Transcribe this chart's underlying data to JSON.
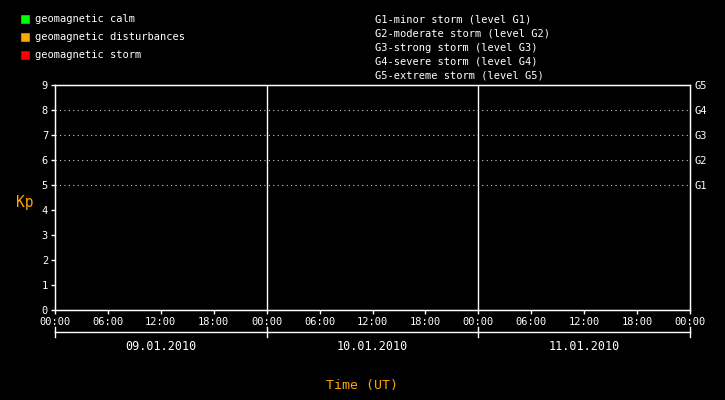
{
  "background_color": "#000000",
  "text_color": "#ffffff",
  "orange_color": "#ffa500",
  "ylabel": "Kp",
  "xlabel": "Time (UT)",
  "ylim": [
    0,
    9
  ],
  "yticks": [
    0,
    1,
    2,
    3,
    4,
    5,
    6,
    7,
    8,
    9
  ],
  "xtick_labels_per_day": [
    "00:00",
    "06:00",
    "12:00",
    "18:00"
  ],
  "dates": [
    "09.01.2010",
    "10.01.2010",
    "11.01.2010"
  ],
  "legend_items": [
    {
      "label": "geomagnetic calm",
      "color": "#00ff00"
    },
    {
      "label": "geomagnetic disturbances",
      "color": "#ffa500"
    },
    {
      "label": "geomagnetic storm",
      "color": "#ff0000"
    }
  ],
  "g_labels": [
    {
      "y": 5,
      "label": "G1"
    },
    {
      "y": 6,
      "label": "G2"
    },
    {
      "y": 7,
      "label": "G3"
    },
    {
      "y": 8,
      "label": "G4"
    },
    {
      "y": 9,
      "label": "G5"
    }
  ],
  "g_descriptions": [
    "G1-minor storm (level G1)",
    "G2-moderate storm (level G2)",
    "G3-strong storm (level G3)",
    "G4-severe storm (level G4)",
    "G5-extreme storm (level G5)"
  ],
  "dotted_levels": [
    5,
    6,
    7,
    8,
    9
  ],
  "n_days": 3,
  "ticks_per_day": 4,
  "font_size": 7.5,
  "font_family": "monospace"
}
